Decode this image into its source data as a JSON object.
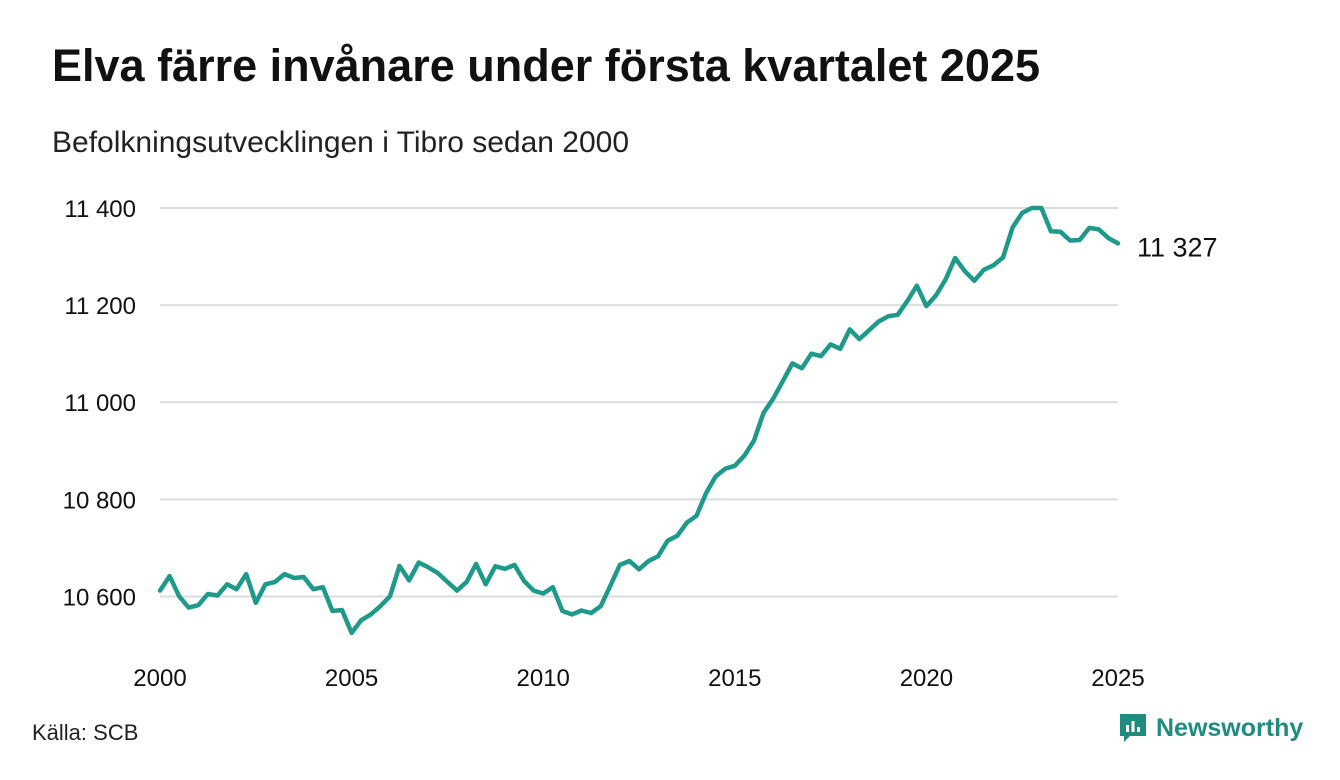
{
  "header": {
    "title": "Elva färre invånare under första kvartalet 2025",
    "subtitle": "Befolkningsutvecklingen i Tibro sedan 2000"
  },
  "footer": {
    "source": "Källa: SCB",
    "brand": "Newsworthy",
    "brand_color": "#1e8c7e"
  },
  "colors": {
    "line": "#1e9a8a",
    "grid": "#dcdcdc",
    "text": "#111111"
  },
  "chart_data": {
    "type": "line",
    "x_unit": "year (quarterly)",
    "x_start": 2000.0,
    "x_step": 0.25,
    "xlim": [
      2000,
      2025
    ],
    "ylim": [
      10500,
      11400
    ],
    "x_ticks": [
      2000,
      2005,
      2010,
      2015,
      2020,
      2025
    ],
    "y_ticks": [
      10600,
      10800,
      11000,
      11200,
      11400
    ],
    "x_tick_labels": [
      "2000",
      "2005",
      "2010",
      "2015",
      "2020",
      "2025"
    ],
    "y_tick_labels": [
      "10 600",
      "10 800",
      "11 000",
      "11 200",
      "11 400"
    ],
    "grid": "horizontal",
    "end_label": "11 327",
    "series": [
      {
        "values": [
          10612,
          10642,
          10600,
          10577,
          10582,
          10605,
          10602,
          10625,
          10615,
          10646,
          10587,
          10625,
          10630,
          10646,
          10638,
          10640,
          10615,
          10619,
          10570,
          10572,
          10525,
          10551,
          10563,
          10580,
          10600,
          10663,
          10633,
          10670,
          10660,
          10648,
          10630,
          10612,
          10630,
          10667,
          10625,
          10662,
          10657,
          10665,
          10632,
          10612,
          10606,
          10619,
          10570,
          10563,
          10571,
          10566,
          10580,
          10622,
          10665,
          10673,
          10656,
          10673,
          10683,
          10715,
          10725,
          10752,
          10766,
          10813,
          10847,
          10863,
          10869,
          10890,
          10921,
          10978,
          11007,
          11043,
          11080,
          11070,
          11100,
          11095,
          11119,
          11110,
          11150,
          11130,
          11148,
          11166,
          11177,
          11180,
          11208,
          11240,
          11198,
          11220,
          11253,
          11297,
          11270,
          11250,
          11273,
          11282,
          11298,
          11360,
          11390,
          11400,
          11400,
          11352,
          11351,
          11333,
          11334,
          11359,
          11356,
          11338,
          11327
        ]
      }
    ]
  }
}
